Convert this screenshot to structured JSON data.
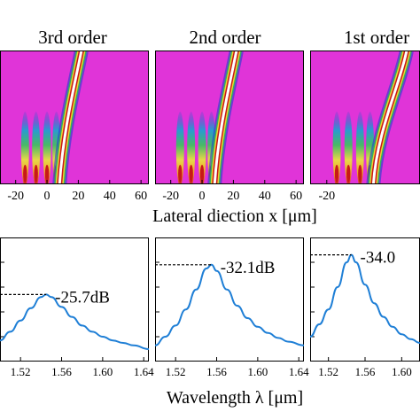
{
  "chart_data": [
    {
      "type": "heatmap",
      "title": "3rd order",
      "xlabel": "Lateral diection x [μm]",
      "xlim": [
        -30,
        65
      ],
      "xticks": [
        -20,
        0,
        20,
        40,
        60
      ],
      "colors": {
        "background": "#e034d8",
        "hot": "#c81818"
      }
    },
    {
      "type": "heatmap",
      "title": "2nd order",
      "xlabel": "Lateral diection x [μm]",
      "xlim": [
        -30,
        65
      ],
      "xticks": [
        -20,
        0,
        20,
        40,
        60
      ],
      "colors": {
        "background": "#e034d8",
        "hot": "#c81818"
      }
    },
    {
      "type": "heatmap",
      "title": "1st order",
      "xlabel": "Lateral diection x [μm]",
      "xlim": [
        -30,
        65
      ],
      "xticks": [
        -20
      ],
      "colors": {
        "background": "#e034d8",
        "hot": "#c81818"
      }
    },
    {
      "type": "line",
      "xlabel": "Wavelength λ [μm]",
      "xlim": [
        1.5,
        1.645
      ],
      "xticks": [
        1.52,
        1.56,
        1.6,
        1.64
      ],
      "peak_label": "-25.7dB",
      "series": [
        {
          "color": "#1f7fd6",
          "x": [
            1.5,
            1.51,
            1.52,
            1.53,
            1.54,
            1.545,
            1.55,
            1.56,
            1.57,
            1.58,
            1.59,
            1.6,
            1.61,
            1.62,
            1.63,
            1.645
          ],
          "y": [
            0.17,
            0.24,
            0.33,
            0.43,
            0.52,
            0.54,
            0.52,
            0.44,
            0.36,
            0.29,
            0.24,
            0.2,
            0.17,
            0.15,
            0.13,
            0.1
          ]
        }
      ],
      "peak": {
        "x": 1.545,
        "y": 0.54
      }
    },
    {
      "type": "line",
      "xlabel": "Wavelength λ [μm]",
      "xlim": [
        1.5,
        1.645
      ],
      "xticks": [
        1.52,
        1.56,
        1.6,
        1.64
      ],
      "peak_label": "-32.1dB",
      "series": [
        {
          "color": "#1f7fd6",
          "x": [
            1.5,
            1.51,
            1.52,
            1.53,
            1.54,
            1.55,
            1.555,
            1.56,
            1.57,
            1.58,
            1.59,
            1.6,
            1.61,
            1.62,
            1.63,
            1.645
          ],
          "y": [
            0.13,
            0.2,
            0.29,
            0.42,
            0.58,
            0.75,
            0.78,
            0.73,
            0.58,
            0.45,
            0.35,
            0.28,
            0.23,
            0.19,
            0.16,
            0.13
          ]
        }
      ],
      "peak": {
        "x": 1.555,
        "y": 0.78
      }
    },
    {
      "type": "line",
      "xlabel": "Wavelength λ [μm]",
      "xlim": [
        1.5,
        1.62
      ],
      "xticks": [
        1.52,
        1.56,
        1.6
      ],
      "peak_label": "-34.0",
      "series": [
        {
          "color": "#1f7fd6",
          "x": [
            1.5,
            1.51,
            1.52,
            1.53,
            1.54,
            1.545,
            1.55,
            1.56,
            1.57,
            1.58,
            1.59,
            1.6,
            1.61,
            1.62
          ],
          "y": [
            0.2,
            0.3,
            0.42,
            0.6,
            0.8,
            0.86,
            0.8,
            0.62,
            0.47,
            0.36,
            0.28,
            0.22,
            0.18,
            0.15
          ]
        }
      ],
      "peak": {
        "x": 1.545,
        "y": 0.86
      }
    }
  ],
  "labels": {
    "top_xlabel": "Lateral diection x [μm]",
    "bottom_xlabel": "Wavelength λ [μm]"
  }
}
